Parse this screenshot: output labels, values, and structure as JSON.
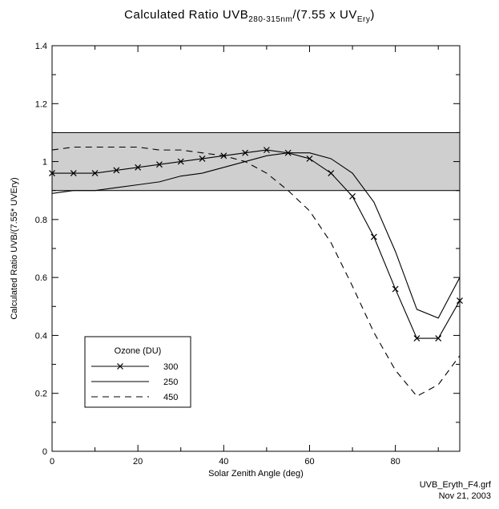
{
  "title": {
    "main": "Calculated Ratio UVB",
    "sub1": "280-315nm",
    "mid": "/(7.55 x UV",
    "sub2": "Ery",
    "end": ")"
  },
  "footer": {
    "filename": "UVB_Eryth_F4.grf",
    "date": "Nov 21, 2003"
  },
  "chart_data": {
    "type": "line",
    "title": "Calculated Ratio UVB280-315nm/(7.55 x UVEry)",
    "xlabel": "Solar Zenith Angle (deg)",
    "ylabel": "Calculated Ratio UVB/(7.55* UVEry)",
    "xlim": [
      0,
      95
    ],
    "ylim": [
      0,
      1.4
    ],
    "xticks": [
      0,
      20,
      40,
      60,
      80
    ],
    "yticks": [
      0,
      0.2,
      0.4,
      0.6,
      0.8,
      1,
      1.2,
      1.4
    ],
    "ytick_labels": [
      "0",
      "0.2",
      "0.4",
      "0.6",
      "0.8",
      "1",
      "1.2",
      "1.4"
    ],
    "shaded_band": [
      0.9,
      1.1
    ],
    "legend": {
      "title": "Ozone (DU)",
      "position": "bottom-left"
    },
    "series": [
      {
        "name": "300",
        "style": "solid-x",
        "x": [
          0,
          5,
          10,
          15,
          20,
          25,
          30,
          35,
          40,
          45,
          50,
          55,
          60,
          65,
          70,
          75,
          80,
          85,
          90,
          95
        ],
        "y": [
          0.96,
          0.96,
          0.96,
          0.97,
          0.98,
          0.99,
          1.0,
          1.01,
          1.02,
          1.03,
          1.04,
          1.03,
          1.01,
          0.96,
          0.88,
          0.74,
          0.56,
          0.39,
          0.39,
          0.52
        ]
      },
      {
        "name": "250",
        "style": "solid",
        "x": [
          0,
          5,
          10,
          15,
          20,
          25,
          30,
          35,
          40,
          45,
          50,
          55,
          60,
          65,
          70,
          75,
          80,
          85,
          90,
          95
        ],
        "y": [
          0.89,
          0.9,
          0.9,
          0.91,
          0.92,
          0.93,
          0.95,
          0.96,
          0.98,
          1.0,
          1.02,
          1.03,
          1.03,
          1.01,
          0.96,
          0.86,
          0.69,
          0.49,
          0.46,
          0.6
        ]
      },
      {
        "name": "450",
        "style": "dashed",
        "x": [
          0,
          5,
          10,
          15,
          20,
          25,
          30,
          35,
          40,
          45,
          50,
          55,
          60,
          65,
          70,
          75,
          80,
          85,
          90,
          95
        ],
        "y": [
          1.04,
          1.05,
          1.05,
          1.05,
          1.05,
          1.04,
          1.04,
          1.03,
          1.02,
          1.0,
          0.96,
          0.9,
          0.83,
          0.72,
          0.57,
          0.41,
          0.28,
          0.19,
          0.23,
          0.33
        ]
      }
    ]
  }
}
